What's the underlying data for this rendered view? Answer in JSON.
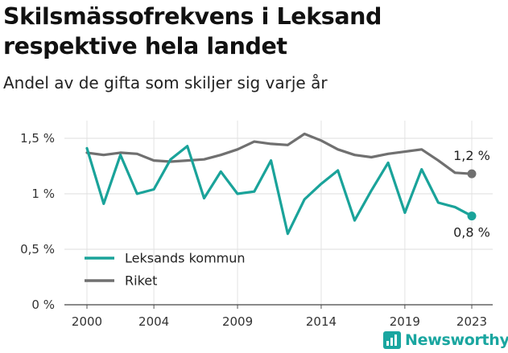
{
  "title": "Skilsmässofrekvens i Leksand respektive hela landet",
  "subtitle": "Andel av de gifta som skiljer sig varje år",
  "brand": {
    "name": "Newsworthy",
    "color": "#1aa6a0"
  },
  "chart_data": {
    "type": "line",
    "title": "Skilsmässofrekvens i Leksand respektive hela landet",
    "subtitle": "Andel av de gifta som skiljer sig varje år",
    "xlabel": "",
    "ylabel": "",
    "x": [
      2000,
      2001,
      2002,
      2003,
      2004,
      2005,
      2006,
      2007,
      2008,
      2009,
      2010,
      2011,
      2012,
      2013,
      2014,
      2015,
      2016,
      2017,
      2018,
      2019,
      2020,
      2021,
      2022,
      2023
    ],
    "x_ticks": [
      2000,
      2004,
      2009,
      2014,
      2019,
      2023
    ],
    "x_tick_labels": [
      "2000",
      "2004",
      "2009",
      "2014",
      "2019",
      "2023"
    ],
    "y_ticks": [
      0,
      0.5,
      1,
      1.5
    ],
    "y_tick_labels": [
      "0 %",
      "0,5 %",
      "1 %",
      "1,5 %"
    ],
    "ylim": [
      0,
      1.6
    ],
    "grid": true,
    "legend_position": "bottom-left",
    "series": [
      {
        "name": "Leksands kommun",
        "color": "#1aa39a",
        "values": [
          1.41,
          0.91,
          1.35,
          1.0,
          1.04,
          1.31,
          1.43,
          0.96,
          1.2,
          1.0,
          1.02,
          1.3,
          0.64,
          0.95,
          1.09,
          1.21,
          0.76,
          1.03,
          1.28,
          0.83,
          1.22,
          0.92,
          0.88,
          0.8
        ],
        "end_label": "0,8 %"
      },
      {
        "name": "Riket",
        "color": "#707070",
        "values": [
          1.37,
          1.35,
          1.37,
          1.36,
          1.3,
          1.29,
          1.3,
          1.31,
          1.35,
          1.4,
          1.47,
          1.45,
          1.44,
          1.54,
          1.48,
          1.4,
          1.35,
          1.33,
          1.36,
          1.38,
          1.4,
          1.3,
          1.19,
          1.18
        ],
        "end_label": "1,2 %"
      }
    ]
  }
}
